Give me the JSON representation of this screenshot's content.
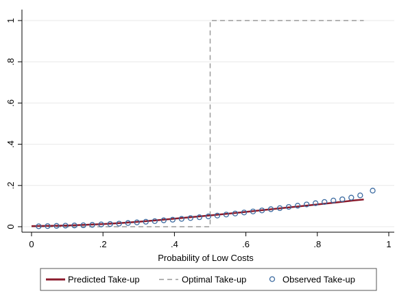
{
  "chart_data": {
    "type": "line",
    "title": "",
    "xlabel": "Probability of Low Costs",
    "ylabel": "",
    "xlim": [
      0,
      1
    ],
    "ylim": [
      0,
      1
    ],
    "x_ticks": [
      0,
      0.2,
      0.4,
      0.6,
      0.8,
      1
    ],
    "x_tick_labels": [
      "0",
      ".2",
      ".4",
      ".6",
      ".8",
      "1"
    ],
    "y_ticks": [
      0,
      0.2,
      0.4,
      0.6,
      0.8,
      1
    ],
    "y_tick_labels": [
      "0",
      ".2",
      ".4",
      ".6",
      ".8",
      "1"
    ],
    "grid": true,
    "legend_position": "bottom",
    "series": [
      {
        "name": "Predicted Take-up",
        "style": "solid-line",
        "color": "#8b1a2b",
        "x": [
          0.0,
          0.05,
          0.1,
          0.15,
          0.2,
          0.25,
          0.3,
          0.35,
          0.4,
          0.45,
          0.5,
          0.55,
          0.6,
          0.65,
          0.7,
          0.75,
          0.8,
          0.85,
          0.9,
          0.93
        ],
        "y": [
          0.003,
          0.004,
          0.006,
          0.009,
          0.013,
          0.018,
          0.024,
          0.031,
          0.039,
          0.047,
          0.055,
          0.063,
          0.072,
          0.081,
          0.09,
          0.099,
          0.108,
          0.117,
          0.127,
          0.132
        ]
      },
      {
        "name": "Optimal Take-up",
        "style": "dashed-line",
        "color": "#999999",
        "x": [
          0.0,
          0.5,
          0.5,
          0.93
        ],
        "y": [
          0,
          0,
          1,
          1
        ]
      },
      {
        "name": "Observed Take-up",
        "style": "hollow-circles",
        "color": "#3b6aa0",
        "x": [
          0.02,
          0.045,
          0.07,
          0.095,
          0.12,
          0.145,
          0.17,
          0.195,
          0.22,
          0.245,
          0.27,
          0.295,
          0.32,
          0.345,
          0.37,
          0.395,
          0.42,
          0.445,
          0.47,
          0.495,
          0.52,
          0.545,
          0.57,
          0.595,
          0.62,
          0.645,
          0.67,
          0.695,
          0.72,
          0.745,
          0.77,
          0.795,
          0.82,
          0.845,
          0.87,
          0.895,
          0.92,
          0.955
        ],
        "y": [
          0.002,
          0.003,
          0.004,
          0.005,
          0.006,
          0.007,
          0.009,
          0.011,
          0.013,
          0.015,
          0.018,
          0.021,
          0.024,
          0.027,
          0.031,
          0.034,
          0.038,
          0.042,
          0.046,
          0.05,
          0.054,
          0.059,
          0.064,
          0.069,
          0.074,
          0.079,
          0.085,
          0.09,
          0.096,
          0.102,
          0.108,
          0.114,
          0.12,
          0.127,
          0.133,
          0.141,
          0.152,
          0.175
        ]
      }
    ]
  }
}
